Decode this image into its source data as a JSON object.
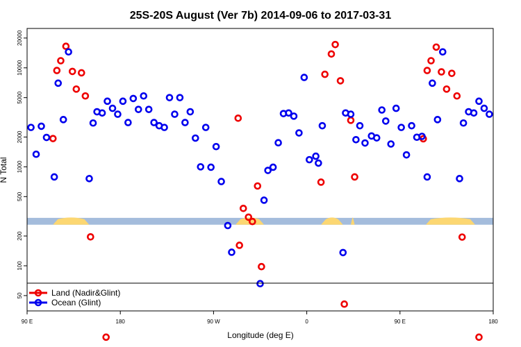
{
  "chart_data": {
    "type": "scatter",
    "title": "25S-20S August (Ver 7b)   2014-09-06 to 2017-03-31",
    "xlabel": "Longitude (deg E)",
    "ylabel": "N Total",
    "xlim": [
      0,
      360
    ],
    "ylim_log": [
      35,
      25000
    ],
    "x_ticks": [
      {
        "value": 0,
        "label": "90 E"
      },
      {
        "value": 72,
        "label": "180"
      },
      {
        "value": 144,
        "label": "90 W"
      },
      {
        "value": 216,
        "label": "0"
      },
      {
        "value": 288,
        "label": "90 E"
      },
      {
        "value": 360,
        "label": "180"
      }
    ],
    "y_ticks": [
      {
        "value": 50,
        "label": "50"
      },
      {
        "value": 100,
        "label": "100"
      },
      {
        "value": 200,
        "label": "200"
      },
      {
        "value": 500,
        "label": "500"
      },
      {
        "value": 1000,
        "label": "1000"
      },
      {
        "value": 2000,
        "label": "2000"
      },
      {
        "value": 5000,
        "label": "5000"
      },
      {
        "value": 10000,
        "label": "10000"
      },
      {
        "value": 20000,
        "label": "20000"
      }
    ],
    "surface_band": {
      "value_range": [
        260,
        305
      ],
      "ocean_color": "#a4bcdc",
      "land_color": "#fcd772",
      "land_segments": [
        [
          20,
          48
        ],
        [
          161,
          183
        ],
        [
          227,
          244
        ],
        [
          250,
          253
        ],
        [
          308,
          346
        ]
      ]
    },
    "series": [
      {
        "name": "Land (Nadir&Glint)",
        "color": "#ee0000",
        "points": [
          [
            20,
            1930
          ],
          [
            23,
            9400
          ],
          [
            26,
            11800
          ],
          [
            30,
            16500
          ],
          [
            35,
            9200
          ],
          [
            38,
            6100
          ],
          [
            42,
            8900
          ],
          [
            45,
            5200
          ],
          [
            49,
            196
          ],
          [
            61,
            19
          ],
          [
            164,
            161
          ],
          [
            163,
            3100
          ],
          [
            167,
            380
          ],
          [
            171,
            310
          ],
          [
            174,
            280
          ],
          [
            178,
            640
          ],
          [
            181,
            98
          ],
          [
            227,
            700
          ],
          [
            230,
            8600
          ],
          [
            235,
            13800
          ],
          [
            238,
            17200
          ],
          [
            242,
            7400
          ],
          [
            245,
            41
          ],
          [
            250,
            2950
          ],
          [
            253,
            790
          ],
          [
            306,
            1920
          ],
          [
            309,
            9400
          ],
          [
            312,
            11800
          ],
          [
            316,
            16200
          ],
          [
            320,
            9100
          ],
          [
            324,
            6100
          ],
          [
            328,
            8800
          ],
          [
            332,
            5200
          ],
          [
            336,
            195
          ],
          [
            349,
            19
          ]
        ]
      },
      {
        "name": "Ocean (Glint)",
        "color": "#0000ee",
        "points": [
          [
            3,
            2500
          ],
          [
            7,
            1340
          ],
          [
            11,
            2570
          ],
          [
            15,
            1980
          ],
          [
            21,
            790
          ],
          [
            24,
            7000
          ],
          [
            28,
            3000
          ],
          [
            32,
            14500
          ],
          [
            48,
            760
          ],
          [
            51,
            2770
          ],
          [
            54,
            3600
          ],
          [
            58,
            3500
          ],
          [
            62,
            4600
          ],
          [
            66,
            3900
          ],
          [
            70,
            3400
          ],
          [
            74,
            4600
          ],
          [
            78,
            2800
          ],
          [
            82,
            4900
          ],
          [
            86,
            3800
          ],
          [
            90,
            5200
          ],
          [
            94,
            3800
          ],
          [
            98,
            2800
          ],
          [
            102,
            2600
          ],
          [
            106,
            2500
          ],
          [
            110,
            5000
          ],
          [
            114,
            3400
          ],
          [
            118,
            5000
          ],
          [
            122,
            2800
          ],
          [
            126,
            3600
          ],
          [
            130,
            1950
          ],
          [
            134,
            1000
          ],
          [
            138,
            2500
          ],
          [
            142,
            990
          ],
          [
            146,
            1600
          ],
          [
            150,
            710
          ],
          [
            155,
            255
          ],
          [
            158,
            137
          ],
          [
            180,
            66
          ],
          [
            183,
            460
          ],
          [
            186,
            920
          ],
          [
            190,
            990
          ],
          [
            194,
            1750
          ],
          [
            198,
            3450
          ],
          [
            202,
            3500
          ],
          [
            206,
            3250
          ],
          [
            210,
            2200
          ],
          [
            214,
            8000
          ],
          [
            218,
            1180
          ],
          [
            223,
            1280
          ],
          [
            225,
            1090
          ],
          [
            228,
            2600
          ],
          [
            244,
            136
          ],
          [
            246,
            3500
          ],
          [
            250,
            3400
          ],
          [
            254,
            1880
          ],
          [
            257,
            2600
          ],
          [
            261,
            1740
          ],
          [
            266,
            2050
          ],
          [
            270,
            1960
          ],
          [
            274,
            3750
          ],
          [
            277,
            2900
          ],
          [
            281,
            1700
          ],
          [
            285,
            3900
          ],
          [
            289,
            2500
          ],
          [
            293,
            1320
          ],
          [
            297,
            2600
          ],
          [
            301,
            1990
          ],
          [
            305,
            2030
          ],
          [
            309,
            790
          ],
          [
            313,
            7000
          ],
          [
            317,
            3000
          ],
          [
            321,
            14500
          ],
          [
            334,
            760
          ],
          [
            337,
            2770
          ],
          [
            341,
            3600
          ],
          [
            345,
            3500
          ],
          [
            349,
            4600
          ],
          [
            353,
            3900
          ],
          [
            357,
            3400
          ]
        ]
      }
    ],
    "legend": {
      "position": "bottom-left",
      "entries": [
        "Land (Nadir&Glint)",
        "Ocean (Glint)"
      ]
    }
  }
}
